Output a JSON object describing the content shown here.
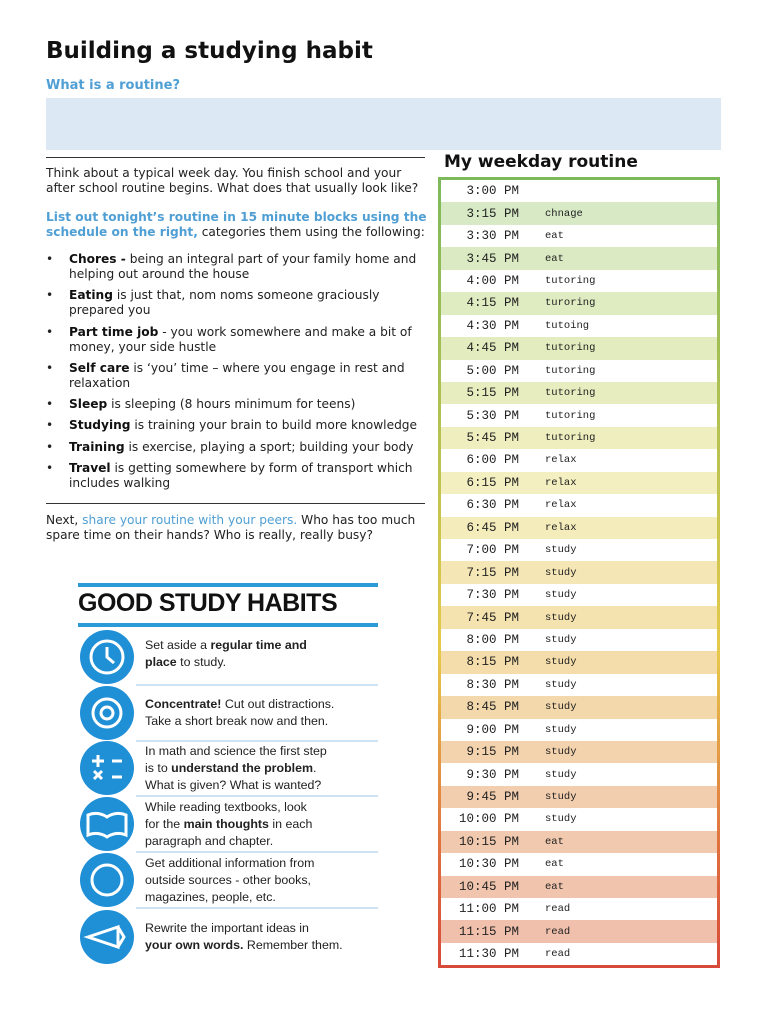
{
  "header": {
    "title": "Building a studying habit",
    "subtitle": "What is a routine?"
  },
  "intro": "Think about a typical week day. You finish school and your after school routine begins. What does that usually look like?",
  "instruction": {
    "highlight": "List out tonight’s routine in 15 minute blocks using the schedule on the right,",
    "text": "categories them using the following:"
  },
  "bullets": [
    {
      "term": "Chores -",
      "text": "being an integral part of your family home and helping out around the house"
    },
    {
      "term": "Eating",
      "text": "is just that, nom noms someone graciously prepared you"
    },
    {
      "term": "Part time job",
      "text": "- you work somewhere and make a bit of money, your side hustle"
    },
    {
      "term": "Self care",
      "text": "is ‘you’ time – where you engage in rest and relaxation"
    },
    {
      "term": "Sleep",
      "text": "is sleeping (8 hours minimum for teens)"
    },
    {
      "term": "Studying",
      "text": "is training your brain to build more knowledge"
    },
    {
      "term": "Training",
      "text": "is exercise, playing a sport; building your body"
    },
    {
      "term": "Travel",
      "text": "is getting somewhere by form of transport which includes walking"
    }
  ],
  "next": {
    "lead": "Next,",
    "highlight": "share your routine with your peers.",
    "text": "Who has too much spare time on their hands? Who is really, really busy?"
  },
  "poster": {
    "title": "GOOD STUDY HABITS",
    "items": [
      [
        [
          {
            "text": "Set aside a ",
            "bold": false
          },
          {
            "text": "regular time and",
            "bold": true
          }
        ],
        [
          {
            "text": "place",
            "bold": true
          },
          {
            "text": " to study.",
            "bold": false
          }
        ]
      ],
      [
        [
          {
            "text": "Concentrate!",
            "bold": true
          },
          {
            "text": " Cut out distractions.",
            "bold": false
          }
        ],
        [
          {
            "text": "Take a short break now and then.",
            "bold": false
          }
        ]
      ],
      [
        [
          {
            "text": "In math and science the first step",
            "bold": false
          }
        ],
        [
          {
            "text": "is to ",
            "bold": false
          },
          {
            "text": "understand the problem",
            "bold": true
          },
          {
            "text": ".",
            "bold": false
          }
        ],
        [
          {
            "text": "What is given? What is wanted?",
            "bold": false
          }
        ]
      ],
      [
        [
          {
            "text": "While reading textbooks, look",
            "bold": false
          }
        ],
        [
          {
            "text": "for the ",
            "bold": false
          },
          {
            "text": "main thoughts",
            "bold": true
          },
          {
            "text": " in each",
            "bold": false
          }
        ],
        [
          {
            "text": "paragraph and chapter.",
            "bold": false
          }
        ]
      ],
      [
        [
          {
            "text": "Get additional information from",
            "bold": false
          }
        ],
        [
          {
            "text": "outside sources - other books,",
            "bold": false
          }
        ],
        [
          {
            "text": "magazines, people, etc.",
            "bold": false
          }
        ]
      ],
      [
        [
          {
            "text": "Rewrite the important ideas in",
            "bold": false
          }
        ],
        [
          {
            "text": "your own words.",
            "bold": true
          },
          {
            "text": " Remember them.",
            "bold": false
          }
        ]
      ]
    ]
  },
  "routine": {
    "heading": "My weekday routine",
    "rows": [
      {
        "time": "3:00 PM"
      },
      {
        "time": "3:15 PM",
        "activity": "chnage"
      },
      {
        "time": "3:30 PM",
        "activity": "eat"
      },
      {
        "time": "3:45 PM",
        "activity": "eat"
      },
      {
        "time": "4:00 PM",
        "activity": "tutoring"
      },
      {
        "time": "4:15 PM",
        "activity": "turoring"
      },
      {
        "time": "4:30 PM",
        "activity": "tutoing"
      },
      {
        "time": "4:45 PM",
        "activity": "tutoring"
      },
      {
        "time": "5:00 PM",
        "activity": "tutoring"
      },
      {
        "time": "5:15 PM",
        "activity": "tutoring"
      },
      {
        "time": "5:30 PM",
        "activity": "tutoring"
      },
      {
        "time": "5:45 PM",
        "activity": "tutoring"
      },
      {
        "time": "6:00 PM",
        "activity": "relax"
      },
      {
        "time": "6:15 PM",
        "activity": "relax"
      },
      {
        "time": "6:30 PM",
        "activity": "relax"
      },
      {
        "time": "6:45 PM",
        "activity": "relax"
      },
      {
        "time": "7:00 PM",
        "activity": "study"
      },
      {
        "time": "7:15 PM",
        "activity": "study"
      },
      {
        "time": "7:30 PM",
        "activity": "study"
      },
      {
        "time": "7:45 PM",
        "activity": "study"
      },
      {
        "time": "8:00 PM",
        "activity": "study"
      },
      {
        "time": "8:15 PM",
        "activity": "study"
      },
      {
        "time": "8:30 PM",
        "activity": "study"
      },
      {
        "time": "8:45 PM",
        "activity": "study"
      },
      {
        "time": "9:00 PM",
        "activity": "study"
      },
      {
        "time": "9:15 PM",
        "activity": "study"
      },
      {
        "time": "9:30 PM",
        "activity": "study"
      },
      {
        "time": "9:45 PM",
        "activity": "study"
      },
      {
        "time": "10:00 PM",
        "activity": "study"
      },
      {
        "time": "10:15 PM",
        "activity": "eat"
      },
      {
        "time": "10:30 PM",
        "activity": "eat"
      },
      {
        "time": "10:45 PM",
        "activity": "eat"
      },
      {
        "time": "11:00 PM",
        "activity": "read"
      },
      {
        "time": "11:15 PM",
        "activity": "read"
      },
      {
        "time": "11:30 PM",
        "activity": "read"
      }
    ]
  }
}
